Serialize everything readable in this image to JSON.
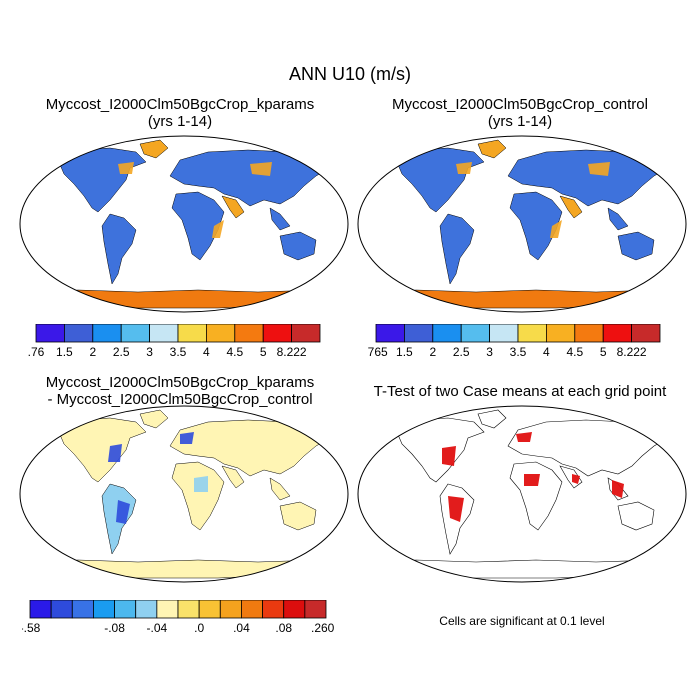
{
  "title": "ANN U10 (m/s)",
  "panels": [
    {
      "line1": "Myccost_I2000Clm50BgcCrop_kparams",
      "line2": "(yrs 1-14)",
      "colorbar": {
        "labels": [
          ".76",
          "1.5",
          "2",
          "2.5",
          "3",
          "3.5",
          "4",
          "4.5",
          "5",
          "8.222"
        ],
        "colors": [
          "#3b18e8",
          "#3e5fd6",
          "#1a8ff0",
          "#55bdee",
          "#c6e6f4",
          "#f7db4a",
          "#f8b022",
          "#f47a10",
          "#ee1010",
          "#c72a2a"
        ]
      }
    },
    {
      "line1": "Myccost_I2000Clm50BgcCrop_control",
      "line2": "(yrs 1-14)",
      "colorbar": {
        "labels": [
          ".765",
          "1.5",
          "2",
          "2.5",
          "3",
          "3.5",
          "4",
          "4.5",
          "5",
          "8.222"
        ],
        "colors": [
          "#3b18e8",
          "#3e5fd6",
          "#1a8ff0",
          "#55bdee",
          "#c6e6f4",
          "#f7db4a",
          "#f8b022",
          "#f47a10",
          "#ee1010",
          "#c72a2a"
        ]
      }
    },
    {
      "line1": "Myccost_I2000Clm50BgcCrop_kparams",
      "line2": "- Myccost_I2000Clm50BgcCrop_control",
      "colorbar": {
        "labels": [
          "-.58",
          "",
          "-.08",
          "-.04",
          ".0",
          ".04",
          ".08",
          ".2602"
        ],
        "label_slots": [
          0,
          2,
          4,
          6,
          8,
          10,
          12,
          14
        ],
        "colors": [
          "#2a1ae8",
          "#2e4bdc",
          "#3872e6",
          "#1a9cf0",
          "#4cb8ee",
          "#8fd0f0",
          "#fff5b4",
          "#f9e26a",
          "#f8c234",
          "#f5a21e",
          "#f07a10",
          "#ea3a10",
          "#dc0e0e",
          "#c72a2a"
        ]
      }
    },
    {
      "line1": "T-Test of two Case means at each grid point",
      "line2": "",
      "note": "Cells are significant at 0.1 level"
    }
  ],
  "map_colors": {
    "ocean": "#ffffff",
    "abs_land": "#3e72dc",
    "abs_high": "#f4a622",
    "abs_antarctica": "#f07a10",
    "diff_land": "#fff5b4",
    "diff_neg": "#8fd0f0",
    "diff_strong": "#2e4bdc",
    "sig": "#e01010"
  }
}
